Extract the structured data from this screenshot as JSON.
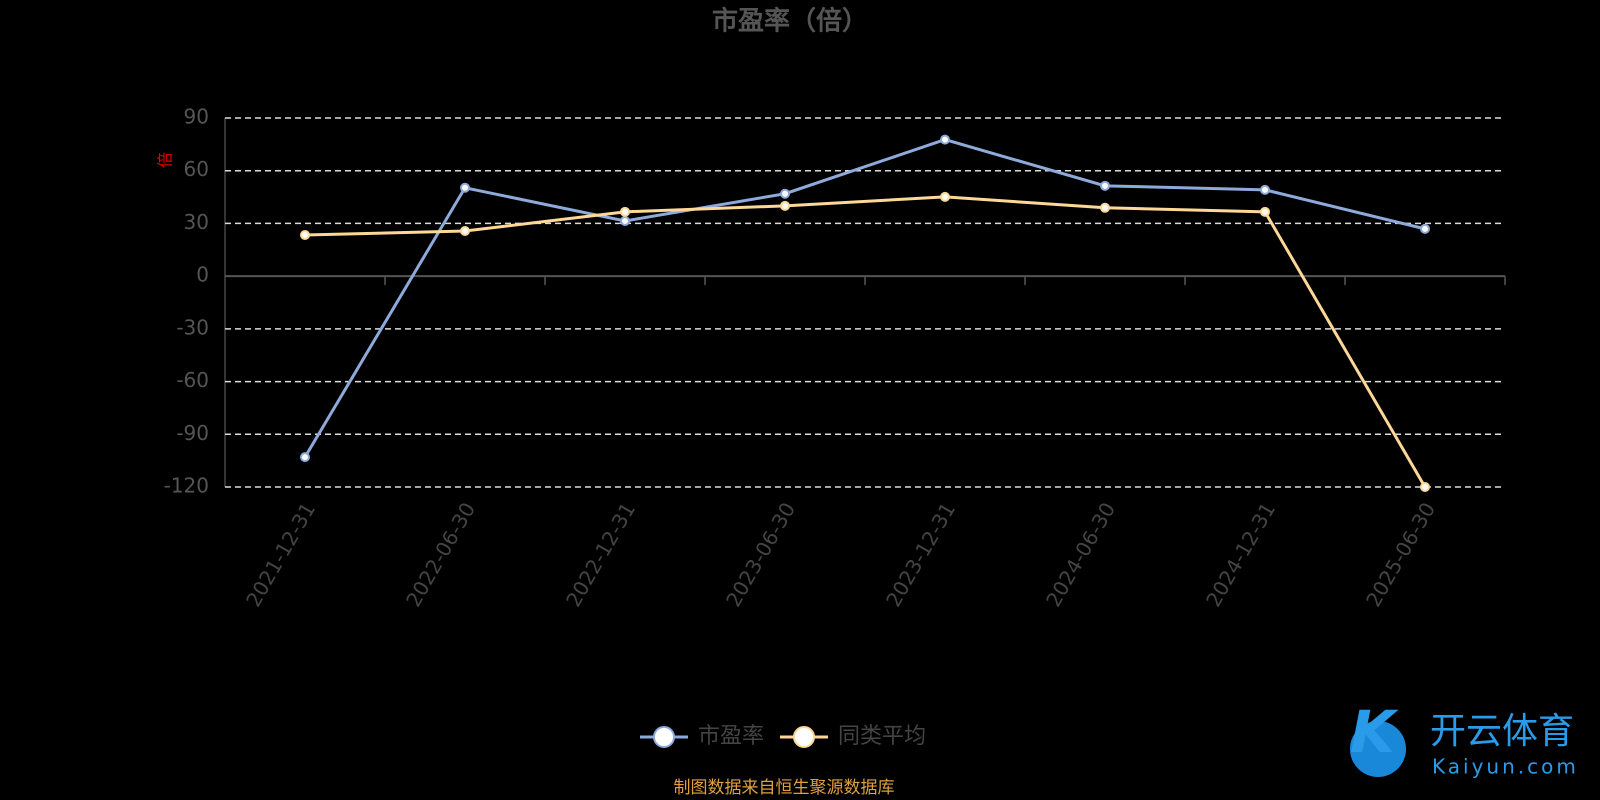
{
  "chart_data": {
    "type": "line",
    "title": "市盈率（倍）",
    "y_label": "倍",
    "categories": [
      "2021-12-31",
      "2022-06-30",
      "2022-12-31",
      "2023-06-30",
      "2023-12-31",
      "2024-06-30",
      "2024-12-31",
      "2025-06-30"
    ],
    "series": [
      {
        "name": "市盈率",
        "color": "#8eaadb",
        "values": [
          -103,
          50.3,
          31.4,
          46.9,
          77.7,
          51.4,
          49.1,
          26.9
        ]
      },
      {
        "name": "同类平均",
        "color": "#fdd896",
        "values": [
          23.4,
          25.7,
          36.6,
          40,
          45.1,
          38.9,
          36.6,
          -120
        ]
      }
    ],
    "ylim": [
      -120,
      90
    ],
    "yticks": [
      90,
      60,
      30,
      0,
      -30,
      -60,
      -90,
      -120
    ],
    "grid": true,
    "legend": "bottom",
    "source": "制图数据来自恒生聚源数据库",
    "watermark": {
      "name": "开云体育",
      "site": "Kaiyun.com"
    }
  }
}
